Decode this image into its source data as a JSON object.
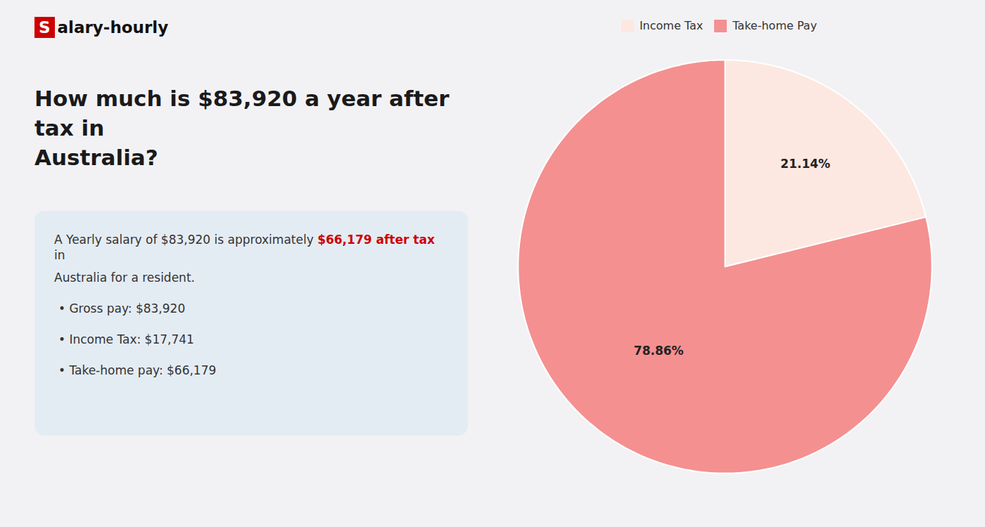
{
  "chart_data": {
    "type": "pie",
    "title": "How much is $83,920 a year after tax in\nAustralia?",
    "categories": [
      "Income Tax",
      "Take-home Pay"
    ],
    "values": [
      21.14,
      78.86
    ],
    "value_labels": [
      "21.14%",
      "78.86%"
    ],
    "colors": [
      "#fce8e0",
      "#f49090"
    ],
    "data_labels": true,
    "legend": "upper center",
    "logo": [
      {
        "text": "S",
        "color": "#cc0000"
      },
      {
        "text": "alary-hourly"
      }
    ],
    "annotations": [
      [
        {
          "text": "A Yearly salary of $83,920 is approximately "
        },
        {
          "text": "$66,179 after tax",
          "color": "#cc0000"
        },
        {
          "text": " in"
        }
      ],
      [
        {
          "text": "Australia for a resident."
        }
      ],
      [
        {
          "text": "•  Gross pay: $83,920"
        }
      ],
      [
        {
          "text": "•  Income Tax: $17,741"
        }
      ],
      [
        {
          "text": "•  Take-home pay: $66,179"
        }
      ]
    ]
  }
}
